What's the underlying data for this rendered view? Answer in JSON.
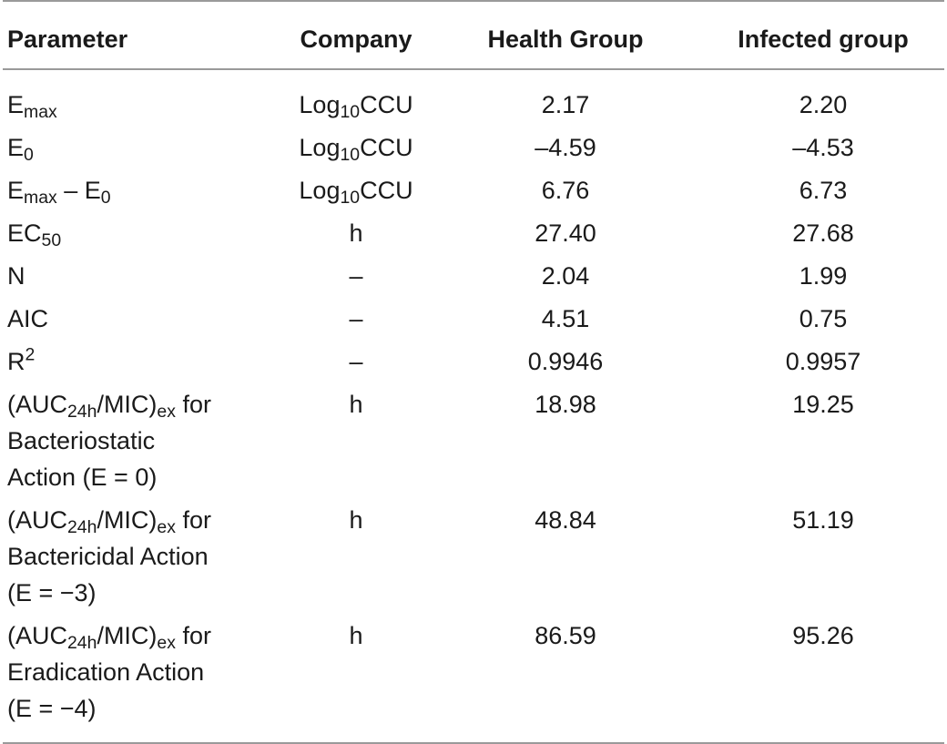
{
  "header": {
    "parameter": "Parameter",
    "company": "Company",
    "health_group": "Health Group",
    "infected_group": "Infected group"
  },
  "rows": [
    {
      "param_main": "E",
      "param_sub": "max",
      "param_tail": "",
      "company_main": "Log",
      "company_sub": "10",
      "company_tail": "CCU",
      "health": "2.17",
      "infected": "2.20"
    },
    {
      "param_main": "E",
      "param_sub": "0",
      "param_tail": "",
      "company_main": "Log",
      "company_sub": "10",
      "company_tail": "CCU",
      "health": "–4.59",
      "infected": "–4.53"
    },
    {
      "param_main": "E",
      "param_sub": "max",
      "param_mid": " – E",
      "param_sub2": "0",
      "company_main": "Log",
      "company_sub": "10",
      "company_tail": "CCU",
      "health": "6.76",
      "infected": "6.73"
    },
    {
      "param_main": "EC",
      "param_sub": "50",
      "param_tail": "",
      "company": "h",
      "health": "27.40",
      "infected": "27.68"
    },
    {
      "param": "N",
      "company": "–",
      "health": "2.04",
      "infected": "1.99"
    },
    {
      "param": "AIC",
      "company": "–",
      "health": "4.51",
      "infected": "0.75"
    },
    {
      "param_main": "R",
      "param_sup": "2",
      "company": "–",
      "health": "0.9946",
      "infected": "0.9957"
    },
    {
      "param_pre": "(AUC",
      "param_sub": "24h",
      "param_mid": "/MIC)",
      "param_sub2": "ex",
      "param_tail": " for",
      "param_line2": "Bacteriostatic",
      "param_line3": "Action (E = 0)",
      "company": "h",
      "health": "18.98",
      "infected": "19.25"
    },
    {
      "param_pre": "(AUC",
      "param_sub": "24h",
      "param_mid": "/MIC)",
      "param_sub2": "ex",
      "param_tail": " for",
      "param_line2": "Bactericidal Action",
      "param_line3": "(E = −3)",
      "company": "h",
      "health": "48.84",
      "infected": "51.19"
    },
    {
      "param_pre": "(AUC",
      "param_sub": "24h",
      "param_mid": "/MIC)",
      "param_sub2": "ex",
      "param_tail": " for",
      "param_line2": "Eradication Action",
      "param_line3": "(E = −4)",
      "company": "h",
      "health": "86.59",
      "infected": "95.26"
    }
  ]
}
